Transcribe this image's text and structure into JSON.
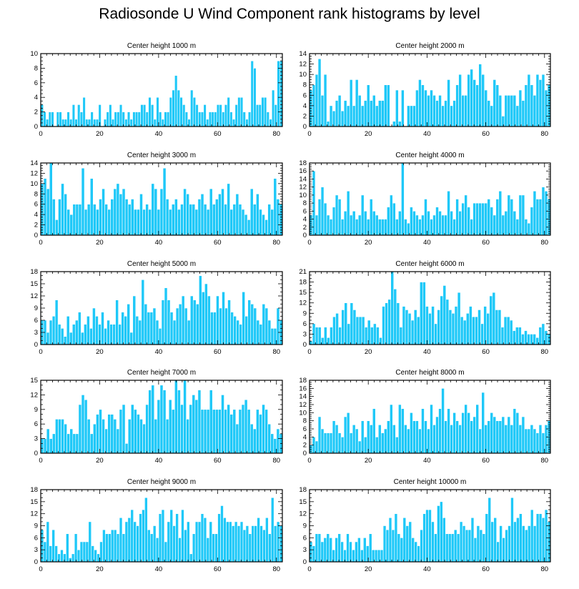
{
  "title": "Radiosonde U Wind Component rank histograms by level",
  "colors": {
    "bar": "#1EC8F8",
    "bar_edge": "#ffffff",
    "axis": "#000000"
  },
  "chart_data": [
    {
      "type": "bar",
      "title": "Center height 1000 m",
      "xlim": [
        0,
        82
      ],
      "ylim": [
        0,
        10
      ],
      "yticks": [
        0,
        2,
        4,
        6,
        8,
        10
      ],
      "xticks": [
        0,
        20,
        40,
        60,
        80
      ],
      "values": [
        3,
        2,
        1,
        2,
        2,
        0,
        2,
        2,
        1,
        1,
        2,
        1,
        3,
        1,
        3,
        2,
        4,
        1,
        1,
        2,
        1,
        1,
        3,
        0,
        1,
        2,
        3,
        1,
        2,
        2,
        3,
        2,
        1,
        2,
        1,
        2,
        2,
        2,
        3,
        3,
        2,
        4,
        3,
        1,
        4,
        2,
        1,
        2,
        2,
        4,
        5,
        7,
        5,
        4,
        3,
        2,
        1,
        5,
        4,
        3,
        2,
        2,
        3,
        1,
        2,
        2,
        2,
        3,
        3,
        2,
        3,
        4,
        2,
        1,
        3,
        4,
        4,
        2,
        1,
        2,
        9,
        8,
        3,
        3,
        4,
        4,
        2,
        1,
        5,
        3,
        9,
        9
      ]
    },
    {
      "type": "bar",
      "title": "Center height 2000 m",
      "xlim": [
        0,
        82
      ],
      "ylim": [
        0,
        14
      ],
      "yticks": [
        0,
        2,
        4,
        6,
        8,
        10,
        12,
        14
      ],
      "xticks": [
        0,
        20,
        40,
        60,
        80
      ],
      "values": [
        7,
        8,
        10,
        13,
        6,
        10,
        1,
        4,
        3,
        5,
        6,
        3,
        5,
        4,
        9,
        4,
        9,
        6,
        4,
        5,
        8,
        5,
        6,
        4,
        5,
        5,
        8,
        8,
        0,
        1,
        7,
        1,
        7,
        0,
        4,
        4,
        4,
        7,
        9,
        8,
        7,
        6,
        7,
        6,
        5,
        6,
        4,
        5,
        9,
        4,
        5,
        8,
        10,
        6,
        6,
        10,
        11,
        9,
        8,
        12,
        10,
        7,
        5,
        4,
        9,
        8,
        6,
        2,
        6,
        6,
        6,
        6,
        4,
        7,
        5,
        8,
        10,
        8,
        6,
        10,
        9,
        10,
        7,
        8
      ]
    },
    {
      "type": "bar",
      "title": "Center height 3000 m",
      "xlim": [
        0,
        82
      ],
      "ylim": [
        0,
        14
      ],
      "yticks": [
        0,
        2,
        4,
        6,
        8,
        10,
        12,
        14
      ],
      "xticks": [
        0,
        20,
        40,
        60,
        80
      ],
      "values": [
        10,
        11,
        9,
        14,
        7,
        3,
        7,
        10,
        8,
        5,
        4,
        6,
        6,
        6,
        13,
        5,
        6,
        11,
        6,
        5,
        7,
        9,
        6,
        5,
        7,
        9,
        10,
        8,
        9,
        7,
        6,
        7,
        5,
        5,
        8,
        5,
        6,
        5,
        10,
        9,
        5,
        9,
        13,
        7,
        5,
        6,
        7,
        5,
        6,
        9,
        8,
        6,
        6,
        5,
        7,
        8,
        6,
        5,
        9,
        6,
        7,
        8,
        9,
        6,
        10,
        5,
        6,
        8,
        6,
        5,
        4,
        3,
        9,
        6,
        8,
        5,
        4,
        3,
        6,
        5,
        11,
        7,
        6
      ]
    },
    {
      "type": "bar",
      "title": "Center height 4000 m",
      "xlim": [
        0,
        82
      ],
      "ylim": [
        0,
        18
      ],
      "yticks": [
        0,
        2,
        4,
        6,
        8,
        10,
        12,
        14,
        16,
        18
      ],
      "xticks": [
        0,
        20,
        40,
        60,
        80
      ],
      "values": [
        5,
        16,
        5,
        9,
        12,
        8,
        5,
        4,
        7,
        10,
        9,
        4,
        6,
        11,
        5,
        6,
        4,
        5,
        10,
        6,
        4,
        9,
        6,
        5,
        4,
        4,
        4,
        7,
        10,
        8,
        4,
        6,
        18,
        4,
        3,
        7,
        6,
        5,
        4,
        5,
        9,
        6,
        4,
        5,
        7,
        6,
        5,
        5,
        11,
        6,
        4,
        9,
        6,
        8,
        10,
        7,
        4,
        8,
        8,
        8,
        8,
        8,
        9,
        7,
        5,
        9,
        11,
        5,
        6,
        10,
        9,
        6,
        4,
        10,
        10,
        4,
        3,
        7,
        11,
        9,
        9,
        12,
        11,
        9
      ]
    },
    {
      "type": "bar",
      "title": "Center height 5000 m",
      "xlim": [
        0,
        82
      ],
      "ylim": [
        0,
        18
      ],
      "yticks": [
        0,
        3,
        6,
        9,
        12,
        15,
        18
      ],
      "xticks": [
        0,
        20,
        40,
        60,
        80
      ],
      "values": [
        6,
        6,
        3,
        6,
        7,
        11,
        5,
        4,
        2,
        7,
        3,
        5,
        6,
        8,
        3,
        5,
        7,
        4,
        9,
        7,
        5,
        8,
        4,
        6,
        5,
        5,
        11,
        5,
        8,
        7,
        10,
        3,
        12,
        7,
        6,
        16,
        10,
        8,
        8,
        9,
        6,
        4,
        11,
        14,
        11,
        8,
        6,
        9,
        10,
        12,
        9,
        6,
        12,
        11,
        10,
        17,
        13,
        15,
        12,
        8,
        8,
        12,
        9,
        13,
        9,
        11,
        8,
        7,
        6,
        5,
        13,
        7,
        11,
        10,
        9,
        6,
        5,
        10,
        9,
        6,
        4,
        4,
        9,
        6
      ]
    },
    {
      "type": "bar",
      "title": "Center height 6000 m",
      "xlim": [
        0,
        82
      ],
      "ylim": [
        0,
        21
      ],
      "yticks": [
        0,
        3,
        6,
        9,
        12,
        15,
        18,
        21
      ],
      "xticks": [
        0,
        20,
        40,
        60,
        80
      ],
      "values": [
        1,
        6,
        5,
        5,
        2,
        5,
        2,
        5,
        8,
        9,
        5,
        10,
        12,
        6,
        12,
        10,
        8,
        8,
        8,
        5,
        7,
        5,
        6,
        5,
        2,
        11,
        12,
        13,
        21,
        16,
        12,
        5,
        11,
        10,
        9,
        7,
        10,
        8,
        18,
        18,
        11,
        9,
        11,
        6,
        10,
        14,
        17,
        13,
        10,
        9,
        11,
        15,
        8,
        7,
        9,
        11,
        8,
        8,
        10,
        6,
        11,
        9,
        14,
        15,
        10,
        10,
        5,
        8,
        8,
        7,
        4,
        5,
        5,
        3,
        4,
        3,
        3,
        3,
        2,
        5,
        6,
        4,
        3
      ]
    },
    {
      "type": "bar",
      "title": "Center height 7000 m",
      "xlim": [
        0,
        82
      ],
      "ylim": [
        0,
        15
      ],
      "yticks": [
        0,
        3,
        6,
        9,
        12,
        15
      ],
      "xticks": [
        0,
        20,
        40,
        60,
        80
      ],
      "values": [
        3,
        3,
        5,
        3,
        4,
        7,
        7,
        7,
        6,
        4,
        5,
        4,
        4,
        10,
        12,
        11,
        7,
        4,
        6,
        8,
        9,
        7,
        5,
        8,
        8,
        7,
        5,
        9,
        10,
        2,
        7,
        10,
        9,
        8,
        7,
        6,
        10,
        13,
        14,
        7,
        11,
        14,
        13,
        7,
        11,
        9,
        15,
        13,
        10,
        15,
        7,
        10,
        12,
        11,
        13,
        9,
        9,
        9,
        13,
        9,
        9,
        9,
        12,
        9,
        10,
        8,
        9,
        6,
        9,
        10,
        11,
        9,
        6,
        5,
        9,
        8,
        10,
        9,
        6,
        4,
        3,
        5,
        4
      ]
    },
    {
      "type": "bar",
      "title": "Center height 8000 m",
      "xlim": [
        0,
        82
      ],
      "ylim": [
        0,
        18
      ],
      "yticks": [
        0,
        2,
        4,
        6,
        8,
        10,
        12,
        14,
        16,
        18
      ],
      "xticks": [
        0,
        20,
        40,
        60,
        80
      ],
      "values": [
        2,
        4,
        3,
        9,
        6,
        5,
        5,
        5,
        8,
        7,
        5,
        4,
        9,
        10,
        5,
        7,
        6,
        3,
        8,
        4,
        8,
        7,
        11,
        4,
        7,
        5,
        6,
        8,
        12,
        7,
        4,
        12,
        11,
        7,
        6,
        10,
        8,
        8,
        6,
        11,
        8,
        6,
        12,
        7,
        9,
        11,
        16,
        8,
        11,
        7,
        10,
        8,
        7,
        10,
        12,
        10,
        8,
        9,
        12,
        6,
        15,
        7,
        8,
        10,
        9,
        8,
        8,
        9,
        7,
        9,
        7,
        11,
        10,
        7,
        9,
        6,
        6,
        7,
        6,
        5,
        7,
        5,
        7,
        8
      ]
    },
    {
      "type": "bar",
      "title": "Center height 9000 m",
      "xlim": [
        0,
        82
      ],
      "ylim": [
        0,
        18
      ],
      "yticks": [
        0,
        3,
        6,
        9,
        12,
        15,
        18
      ],
      "xticks": [
        0,
        20,
        40,
        60,
        80
      ],
      "values": [
        8,
        5,
        10,
        4,
        8,
        4,
        2,
        3,
        2,
        7,
        1,
        2,
        7,
        3,
        5,
        5,
        5,
        10,
        4,
        3,
        2,
        5,
        8,
        7,
        7,
        8,
        8,
        7,
        11,
        7,
        10,
        11,
        13,
        10,
        9,
        12,
        13,
        16,
        8,
        7,
        9,
        6,
        12,
        13,
        5,
        10,
        13,
        9,
        12,
        6,
        13,
        8,
        10,
        2,
        7,
        10,
        10,
        12,
        11,
        6,
        10,
        7,
        7,
        12,
        14,
        11,
        10,
        10,
        9,
        10,
        9,
        10,
        8,
        9,
        7,
        9,
        9,
        11,
        9,
        8,
        11,
        7,
        16,
        9,
        10,
        9
      ]
    },
    {
      "type": "bar",
      "title": "Center height 10000 m",
      "xlim": [
        0,
        82
      ],
      "ylim": [
        0,
        18
      ],
      "yticks": [
        0,
        3,
        6,
        9,
        12,
        15,
        18
      ],
      "xticks": [
        0,
        20,
        40,
        60,
        80
      ],
      "values": [
        5,
        4,
        7,
        7,
        5,
        6,
        7,
        6,
        3,
        6,
        7,
        5,
        3,
        7,
        5,
        3,
        5,
        6,
        3,
        6,
        4,
        7,
        3,
        3,
        3,
        3,
        9,
        8,
        11,
        8,
        12,
        7,
        6,
        11,
        9,
        10,
        6,
        5,
        4,
        8,
        12,
        13,
        13,
        10,
        7,
        14,
        15,
        11,
        7,
        7,
        7,
        8,
        7,
        10,
        9,
        8,
        8,
        11,
        6,
        9,
        8,
        7,
        12,
        16,
        10,
        11,
        5,
        9,
        6,
        8,
        9,
        16,
        10,
        11,
        12,
        9,
        8,
        9,
        13,
        9,
        12,
        12,
        11,
        13,
        10
      ]
    }
  ]
}
